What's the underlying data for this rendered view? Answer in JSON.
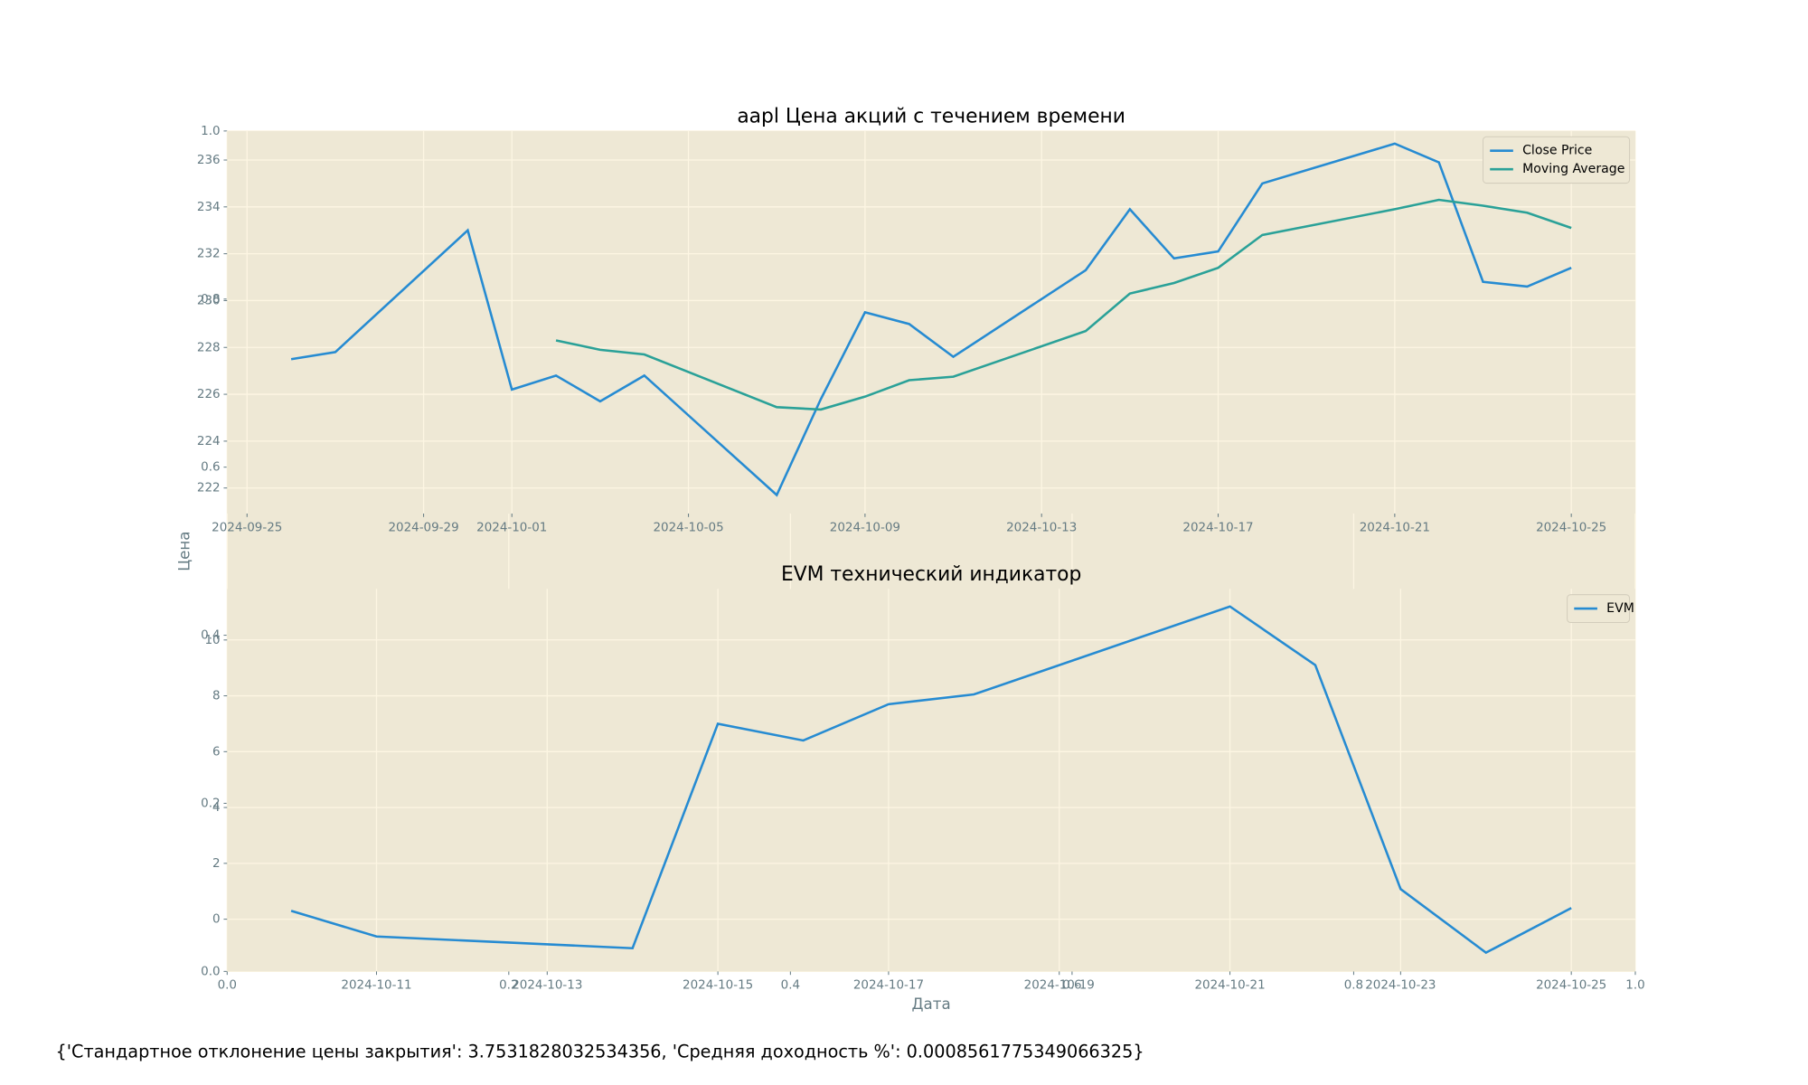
{
  "chart_data": [
    {
      "type": "axes",
      "xlabel": "Дата",
      "ylabel": "Цена",
      "xlim": [
        0,
        1
      ],
      "ylim": [
        0,
        1
      ],
      "xticks": [
        {
          "value": 0,
          "label": "0.0"
        },
        0.2,
        0.4,
        0.6,
        0.8,
        {
          "value": 1,
          "label": "1.0"
        }
      ],
      "yticks": [
        {
          "value": 0,
          "label": "0.0"
        },
        0.2,
        0.4,
        0.6,
        0.8,
        {
          "value": 1,
          "label": "1.0"
        }
      ],
      "grid": true,
      "background": "#eee8d5"
    },
    {
      "type": "line",
      "title": "aapl Цена акций с течением времени",
      "x": [
        "2024-09-26",
        "2024-09-27",
        "2024-09-30",
        "2024-10-01",
        "2024-10-02",
        "2024-10-03",
        "2024-10-04",
        "2024-10-07",
        "2024-10-08",
        "2024-10-09",
        "2024-10-10",
        "2024-10-11",
        "2024-10-14",
        "2024-10-15",
        "2024-10-16",
        "2024-10-17",
        "2024-10-18",
        "2024-10-21",
        "2024-10-22",
        "2024-10-23",
        "2024-10-24",
        "2024-10-25"
      ],
      "series": [
        {
          "name": "Close Price",
          "color": "#268bd2",
          "values": [
            227.5,
            227.8,
            233.0,
            226.2,
            226.8,
            225.7,
            226.8,
            221.7,
            225.8,
            229.5,
            229.0,
            227.6,
            231.3,
            233.9,
            231.8,
            232.1,
            235.0,
            236.7,
            235.9,
            230.8,
            230.6,
            231.4
          ]
        },
        {
          "name": "Moving Average",
          "color": "#2aa198",
          "values": [
            null,
            null,
            null,
            null,
            228.3,
            227.9,
            227.7,
            225.45,
            225.35,
            225.9,
            226.6,
            226.75,
            228.7,
            230.3,
            230.75,
            231.4,
            232.8,
            233.9,
            234.3,
            234.05,
            233.75,
            233.1
          ]
        }
      ],
      "xlim": [
        "2024-09-24T13:12",
        "2024-10-26T10:48"
      ],
      "xticks": [
        "2024-09-25",
        "2024-09-29",
        "2024-10-01",
        "2024-10-05",
        "2024-10-09",
        "2024-10-13",
        "2024-10-17",
        "2024-10-21",
        "2024-10-25"
      ],
      "ylim": [
        220.91,
        237.24
      ],
      "yticks": [
        222,
        224,
        226,
        228,
        230,
        232,
        234,
        236
      ],
      "grid": true,
      "legend": "upper right",
      "background": "#eee8d5"
    },
    {
      "type": "line",
      "title": "EVM технический индикатор",
      "x": [
        "2024-10-10",
        "2024-10-11",
        "2024-10-14",
        "2024-10-15",
        "2024-10-16",
        "2024-10-17",
        "2024-10-18",
        "2024-10-21",
        "2024-10-22",
        "2024-10-23",
        "2024-10-24",
        "2024-10-25"
      ],
      "series": [
        {
          "name": "EVM",
          "color": "#268bd2",
          "values": [
            0.3,
            -0.62,
            -1.04,
            7.0,
            6.4,
            7.7,
            8.05,
            11.2,
            9.1,
            1.08,
            -1.2,
            0.4
          ]
        }
      ],
      "xlim": [
        "2024-10-09T06:00",
        "2024-10-25T18:00"
      ],
      "xticks": [
        "2024-10-11",
        "2024-10-13",
        "2024-10-15",
        "2024-10-17",
        "2024-10-19",
        "2024-10-21",
        "2024-10-23",
        "2024-10-25"
      ],
      "ylim": [
        -1.87,
        11.83
      ],
      "yticks": [
        0,
        2,
        4,
        6,
        8,
        10
      ],
      "grid": true,
      "legend": "upper right",
      "background": "#eee8d5"
    }
  ],
  "footer": "{'Стандартное отклонение цены закрытия': 3.7531828032534356, 'Средняя доходность %': 0.0008561775349066325}"
}
